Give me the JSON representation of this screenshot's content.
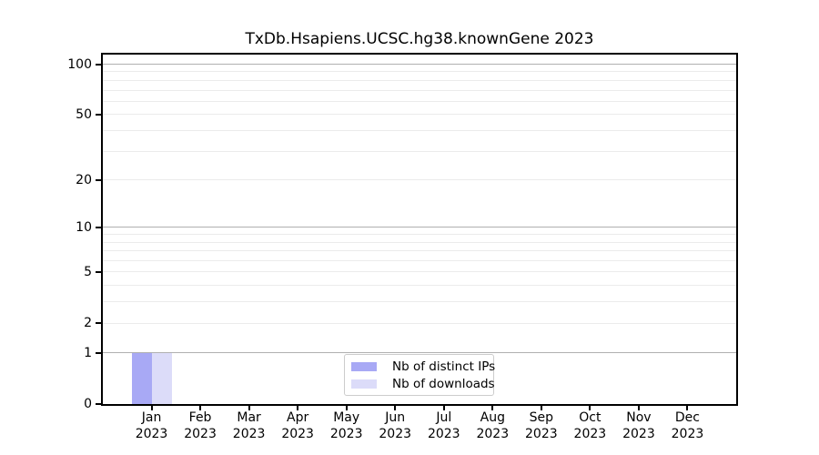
{
  "title": "TxDb.Hsapiens.UCSC.hg38.knownGene 2023",
  "colors": {
    "distinct_ips": "#a8a9f5",
    "downloads": "#dcdcf9",
    "grid_minor": "#ebebeb",
    "grid_major": "#b0b0b0",
    "axis": "#000000",
    "legend_border": "#cccccc",
    "text": "#000000"
  },
  "chart_data": {
    "type": "bar",
    "title": "TxDb.Hsapiens.UCSC.hg38.knownGene 2023",
    "scale": "log10(1+x)",
    "categories": [
      "Jan",
      "Feb",
      "Mar",
      "Apr",
      "May",
      "Jun",
      "Jul",
      "Aug",
      "Sep",
      "Oct",
      "Nov",
      "Dec"
    ],
    "category_year": "2023",
    "series": [
      {
        "name": "Nb of distinct IPs",
        "color": "#a8a9f5",
        "values": [
          1,
          0,
          0,
          0,
          0,
          0,
          0,
          0,
          0,
          0,
          0,
          0
        ]
      },
      {
        "name": "Nb of downloads",
        "color": "#dcdcf9",
        "values": [
          1,
          0,
          0,
          0,
          0,
          0,
          0,
          0,
          0,
          0,
          0,
          0
        ]
      }
    ],
    "yticks": [
      0,
      1,
      2,
      5,
      10,
      20,
      50,
      100
    ],
    "ylim": [
      0,
      114
    ],
    "grid_major_values": [
      1,
      10,
      100
    ],
    "grid_minor_values": [
      2,
      3,
      4,
      5,
      6,
      7,
      8,
      9,
      20,
      30,
      40,
      50,
      60,
      70,
      80,
      90
    ],
    "grid": "horizontal",
    "legend_position": "inside-bottom-center"
  }
}
